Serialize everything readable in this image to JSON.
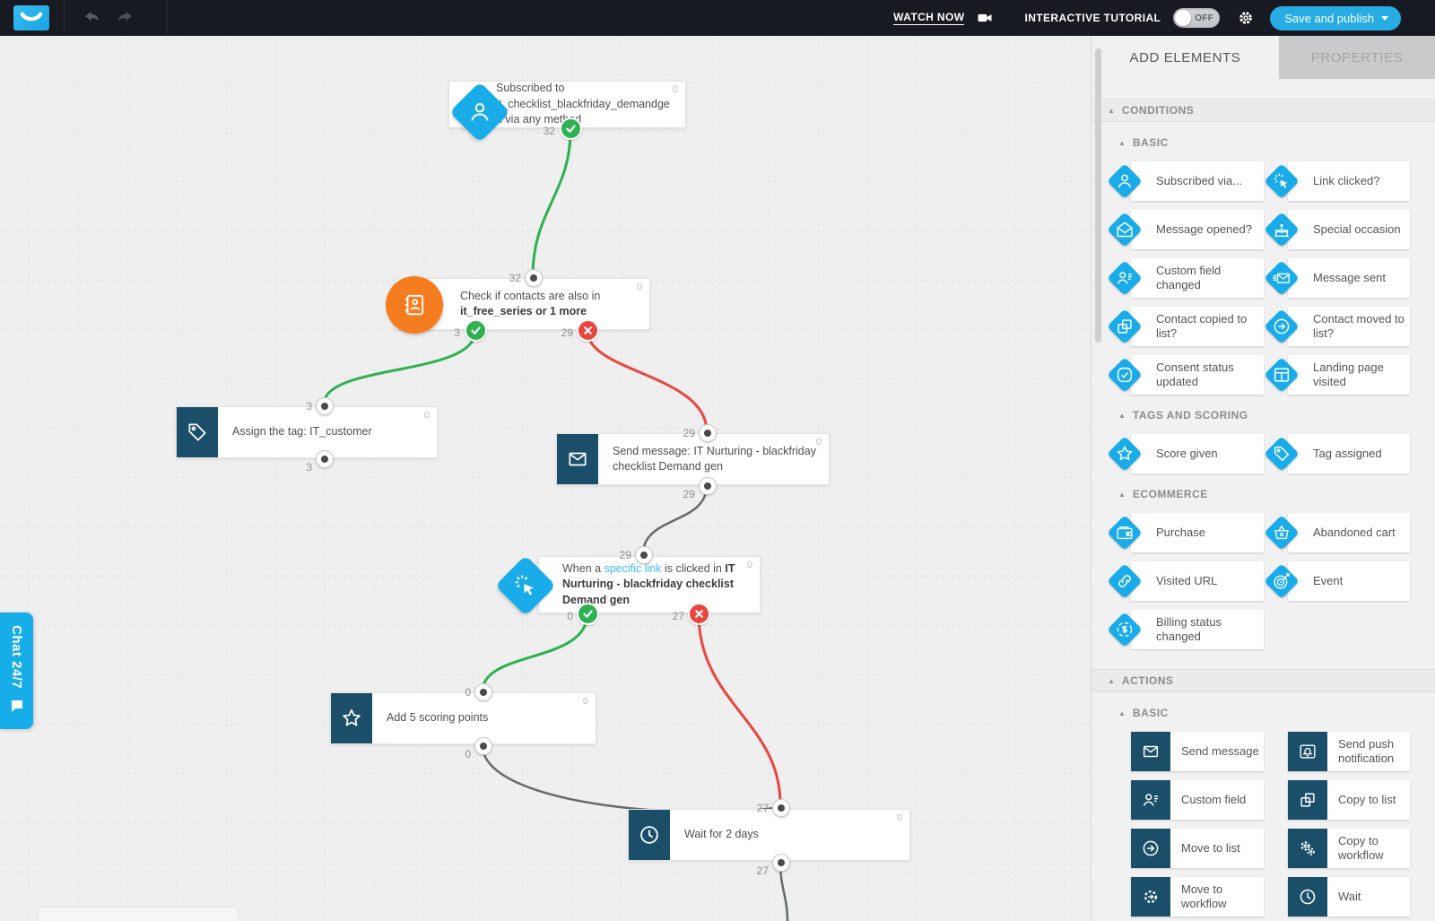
{
  "colors": {
    "accent_blue": "#19ace8",
    "dark_teal": "#1b4f69",
    "orange": "#f57d20",
    "green": "#2eb150",
    "red": "#e8463e",
    "topbar_bg": "#171a20"
  },
  "topbar": {
    "watch_now": "WATCH NOW",
    "tutorial_label": "INTERACTIVE TUTORIAL",
    "toggle_state": "OFF",
    "save_button": "Save and publish"
  },
  "chat_tab": {
    "label": "Chat 24/7"
  },
  "canvas": {
    "nodes": {
      "n1": {
        "badge": "0",
        "text": "Subscribed to it_checklist_blackfriday_demandgen via any method",
        "out_label": "32"
      },
      "n2": {
        "badge": "0",
        "in_label": "32",
        "text_prefix": "Check if contacts are also in ",
        "text_bold": "it_free_series or 1 more",
        "yes_label": "3",
        "no_label": "29"
      },
      "n3": {
        "badge": "0",
        "in_label": "3",
        "text": "Assign the tag: IT_customer",
        "out_label": "3"
      },
      "n4": {
        "badge": "0",
        "in_label": "29",
        "text": "Send message: IT Nurturing - blackfriday checklist Demand gen",
        "out_label": "29"
      },
      "n5": {
        "badge": "0",
        "in_label": "29",
        "text_prefix": "When a ",
        "text_link": "specific link",
        "text_mid": " is clicked in ",
        "text_bold": "IT Nurturing - blackfriday checklist Demand gen",
        "yes_label": "0",
        "no_label": "27"
      },
      "n6": {
        "badge": "0",
        "in_label": "0",
        "text": "Add 5 scoring points",
        "out_label": "0"
      },
      "n7": {
        "badge": "0",
        "in_label": "27",
        "text": "Wait for 2 days",
        "out_label": "27"
      }
    }
  },
  "panel": {
    "tab_add": "ADD ELEMENTS",
    "tab_properties": "PROPERTIES",
    "sec_conditions": "CONDITIONS",
    "sec_conditions_basic": "BASIC",
    "sec_tags": "TAGS AND SCORING",
    "sec_ecommerce": "ECOMMERCE",
    "sec_actions": "ACTIONS",
    "sec_actions_basic": "BASIC",
    "conditions_basic": [
      {
        "label": "Subscribed via...",
        "icon": "person-icon"
      },
      {
        "label": "Link clicked?",
        "icon": "click-icon"
      },
      {
        "label": "Message opened?",
        "icon": "mail-open-icon"
      },
      {
        "label": "Special occasion",
        "icon": "cake-icon"
      },
      {
        "label": "Custom field changed",
        "icon": "person-field-icon"
      },
      {
        "label": "Message sent",
        "icon": "mail-sent-icon"
      },
      {
        "label": "Contact copied to list?",
        "icon": "copy-icon"
      },
      {
        "label": "Contact moved to list?",
        "icon": "arrow-circle-icon"
      },
      {
        "label": "Consent status updated",
        "icon": "consent-icon"
      },
      {
        "label": "Landing page visited",
        "icon": "landing-icon"
      }
    ],
    "tags_scoring": [
      {
        "label": "Score given",
        "icon": "star-icon"
      },
      {
        "label": "Tag assigned",
        "icon": "tag-icon"
      }
    ],
    "ecommerce": [
      {
        "label": "Purchase",
        "icon": "wallet-icon"
      },
      {
        "label": "Abandoned cart",
        "icon": "basket-icon"
      },
      {
        "label": "Visited URL",
        "icon": "link-icon"
      },
      {
        "label": "Event",
        "icon": "target-icon"
      },
      {
        "label": "Billing status changed",
        "icon": "billing-icon"
      }
    ],
    "actions_basic": [
      {
        "label": "Send message",
        "icon": "mail-icon"
      },
      {
        "label": "Send push notification",
        "icon": "push-icon"
      },
      {
        "label": "Custom field",
        "icon": "person-field-icon"
      },
      {
        "label": "Copy to list",
        "icon": "copy-icon"
      },
      {
        "label": "Move to list",
        "icon": "arrow-circle-icon"
      },
      {
        "label": "Copy to workflow",
        "icon": "gears-icon"
      },
      {
        "label": "Move to workflow",
        "icon": "gear-arrow-icon"
      },
      {
        "label": "Wait",
        "icon": "clock-icon"
      }
    ]
  }
}
